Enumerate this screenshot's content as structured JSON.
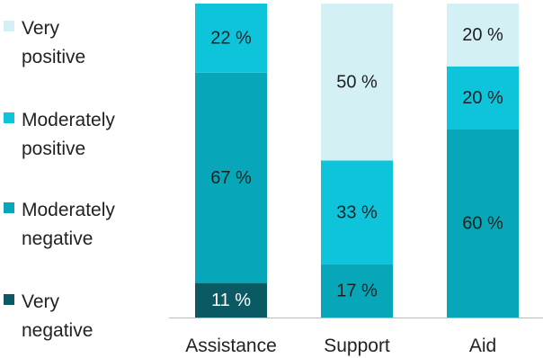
{
  "chart_data": {
    "type": "bar",
    "stacked": true,
    "orientation": "vertical",
    "categories": [
      "Assistance",
      "Support",
      "Aid"
    ],
    "series": [
      {
        "name": "Very negative",
        "color": "#0b5a63",
        "label_color": "#ffffff",
        "values": [
          11,
          0,
          0
        ]
      },
      {
        "name": "Moderately negative",
        "color": "#07a7b9",
        "label_color": "#1e1e1e",
        "values": [
          67,
          17,
          60
        ]
      },
      {
        "name": "Moderately positive",
        "color": "#0dc4db",
        "label_color": "#1e1e1e",
        "values": [
          22,
          33,
          20
        ]
      },
      {
        "name": "Very positive",
        "color": "#d3f0f5",
        "label_color": "#1e1e1e",
        "values": [
          0,
          50,
          20
        ]
      }
    ],
    "legend_order": [
      "Very positive",
      "Moderately positive",
      "Moderately negative",
      "Very negative"
    ],
    "legend_placement": "left",
    "value_suffix": " %",
    "ylim": [
      0,
      100
    ],
    "grid": false,
    "axis_color": "#bbbbbb"
  }
}
